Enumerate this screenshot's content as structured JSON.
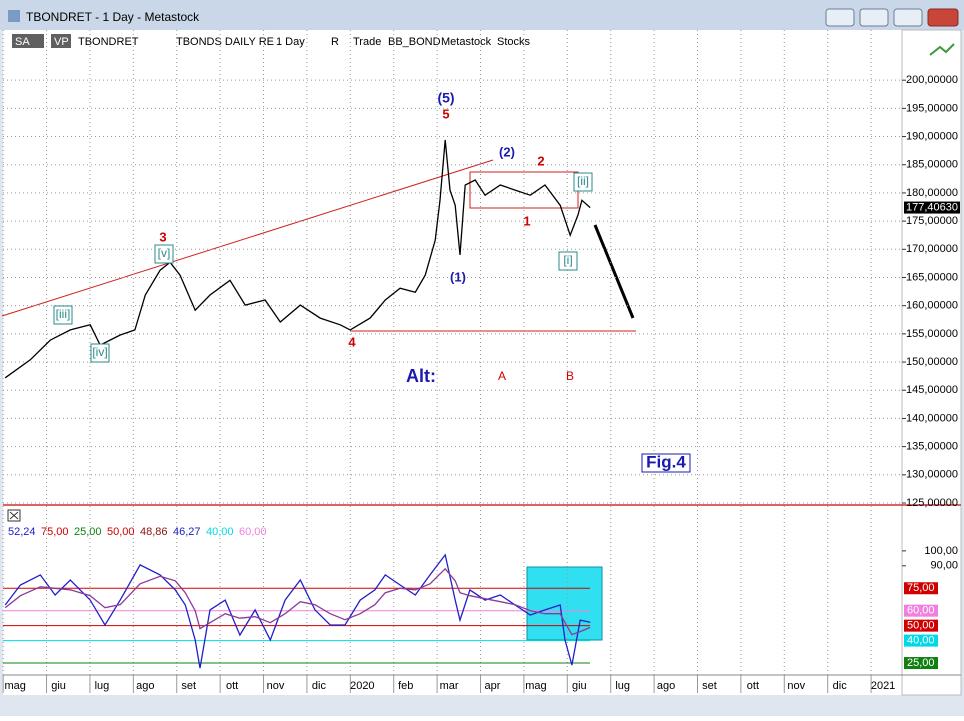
{
  "window": {
    "title": "TBONDRET - 1 Day - Metastock",
    "toolbar": [
      "SA",
      "VP",
      "TBONDRET",
      "TBONDS DAILY RE",
      "1 Day",
      "R",
      "Trade",
      "BB_BOND",
      "Metastock",
      "Stocks"
    ]
  },
  "chart_data": [
    {
      "type": "line",
      "x": [
        -0.23,
        0.35,
        0.81,
        1.27,
        1.73,
        1.96,
        2.42,
        2.76,
        3.0,
        3.34,
        3.57,
        3.8,
        4.15,
        4.49,
        4.95,
        5.3,
        5.76,
        6.11,
        6.57,
        7.03,
        7.49,
        7.72,
        8.18,
        8.53,
        8.87,
        9.22,
        9.45,
        9.68,
        9.79,
        9.91,
        10.02,
        10.14,
        10.25,
        10.37,
        10.6,
        10.83,
        11.18,
        11.52,
        11.87,
        12.21,
        12.56,
        12.79,
        12.97,
        13.06,
        13.25
      ],
      "series": [
        {
          "name": "TBONDRET",
          "color": "#000000",
          "values": [
            147.2,
            150.4,
            153.9,
            155.7,
            156.6,
            153.0,
            154.8,
            155.7,
            161.9,
            166.3,
            167.7,
            165.4,
            159.2,
            161.9,
            164.5,
            160.1,
            161.0,
            157.1,
            160.1,
            157.8,
            156.6,
            155.7,
            157.8,
            161.0,
            163.1,
            162.4,
            165.4,
            171.6,
            178.7,
            189.4,
            180.5,
            177.8,
            169.0,
            181.4,
            182.3,
            179.6,
            181.4,
            180.5,
            179.6,
            181.4,
            177.8,
            172.5,
            176.1,
            178.7,
            177.4063
          ]
        }
      ],
      "last_value_label": "177,40630",
      "xlim": [
        -0.28,
        20.39
      ],
      "xticks": [
        {
          "value": 0,
          "label": "mag"
        },
        {
          "value": 1,
          "label": "giu"
        },
        {
          "value": 2,
          "label": "lug"
        },
        {
          "value": 3,
          "label": "ago"
        },
        {
          "value": 4,
          "label": "set"
        },
        {
          "value": 5,
          "label": "ott"
        },
        {
          "value": 6,
          "label": "nov"
        },
        {
          "value": 7,
          "label": "dic"
        },
        {
          "value": 8,
          "label": "2020"
        },
        {
          "value": 9,
          "label": "feb"
        },
        {
          "value": 10,
          "label": "mar"
        },
        {
          "value": 11,
          "label": "apr"
        },
        {
          "value": 12,
          "label": "mag"
        },
        {
          "value": 13,
          "label": "giu"
        },
        {
          "value": 14,
          "label": "lug"
        },
        {
          "value": 15,
          "label": "ago"
        },
        {
          "value": 16,
          "label": "set"
        },
        {
          "value": 17,
          "label": "ott"
        },
        {
          "value": 18,
          "label": "nov"
        },
        {
          "value": 19,
          "label": "dic"
        },
        {
          "value": 20,
          "label": "2021"
        }
      ],
      "ylim": [
        125,
        208.9
      ],
      "yticks": [
        {
          "value": 125,
          "label": "125,00000"
        },
        {
          "value": 130,
          "label": "130,00000"
        },
        {
          "value": 135,
          "label": "135,00000"
        },
        {
          "value": 140,
          "label": "140,00000"
        },
        {
          "value": 145,
          "label": "145,00000"
        },
        {
          "value": 150,
          "label": "150,00000"
        },
        {
          "value": 155,
          "label": "155,00000"
        },
        {
          "value": 160,
          "label": "160,00000"
        },
        {
          "value": 165,
          "label": "165,00000"
        },
        {
          "value": 170,
          "label": "170,00000"
        },
        {
          "value": 175,
          "label": "175,00000"
        },
        {
          "value": 180,
          "label": "180,00000"
        },
        {
          "value": 185,
          "label": "185,00000"
        },
        {
          "value": 190,
          "label": "190,00000"
        },
        {
          "value": 195,
          "label": "195,00000"
        },
        {
          "value": 200,
          "label": "200,00000"
        }
      ],
      "grid": true,
      "annotations": [
        {
          "text": "(5)",
          "color": "#1a1ab0"
        },
        {
          "text": "5",
          "color": "#d00000"
        },
        {
          "text": "(2)",
          "color": "#1a1ab0"
        },
        {
          "text": "2",
          "color": "#d00000"
        },
        {
          "text": "[ii]",
          "color": "#2a8a8a"
        },
        {
          "text": "1",
          "color": "#d00000"
        },
        {
          "text": "[i]",
          "color": "#2a8a8a"
        },
        {
          "text": "(1)",
          "color": "#1a1ab0"
        },
        {
          "text": "3",
          "color": "#d00000"
        },
        {
          "text": "[v]",
          "color": "#2a8a8a"
        },
        {
          "text": "[iii]",
          "color": "#2a8a8a"
        },
        {
          "text": "[iv]",
          "color": "#2a8a8a"
        },
        {
          "text": "4",
          "color": "#d00000"
        },
        {
          "text": "Alt:",
          "color": "#1a1ab0"
        },
        {
          "text": "A",
          "color": "#d00000"
        },
        {
          "text": "B",
          "color": "#d00000"
        },
        {
          "text": "Fig.4",
          "color": "#1a1ab0"
        }
      ]
    },
    {
      "type": "line",
      "x": [
        -0.23,
        0.12,
        0.58,
        0.92,
        1.27,
        1.73,
        2.07,
        2.42,
        2.88,
        3.34,
        3.69,
        3.92,
        4.15,
        4.26,
        4.49,
        4.84,
        5.18,
        5.53,
        5.88,
        6.22,
        6.57,
        6.91,
        7.26,
        7.6,
        7.95,
        8.29,
        8.53,
        8.87,
        9.22,
        9.56,
        9.91,
        10.14,
        10.25,
        10.48,
        10.83,
        11.18,
        11.52,
        11.87,
        12.21,
        12.56,
        12.67,
        12.83,
        13.02,
        13.25
      ],
      "series": [
        {
          "color": "#2020c8",
          "values": [
            63.8,
            77.2,
            83.9,
            70.5,
            80.5,
            67.1,
            50.4,
            67.1,
            90.6,
            83.9,
            73.9,
            63.8,
            40.4,
            21.6,
            60.5,
            67.1,
            43.7,
            60.5,
            40.4,
            67.1,
            80.5,
            60.5,
            50.4,
            50.4,
            67.1,
            73.9,
            83.9,
            77.2,
            70.5,
            83.9,
            97.3,
            67.1,
            53.7,
            73.9,
            67.1,
            70.5,
            63.8,
            57.1,
            60.5,
            63.8,
            40.4,
            23.6,
            53.7,
            52.24
          ]
        },
        {
          "color": "#8a3a9a",
          "values": [
            62,
            70,
            76,
            75,
            74,
            70,
            62,
            64,
            78,
            83,
            80,
            72,
            60,
            48,
            52,
            58,
            55,
            56,
            52,
            58,
            66,
            64,
            58,
            54,
            58,
            64,
            72,
            75,
            74,
            78,
            88,
            80,
            72,
            70,
            68,
            66,
            64,
            60,
            58,
            58,
            52,
            44,
            46,
            48.86
          ]
        }
      ],
      "legend": [
        {
          "value": 52.24,
          "label": "52,24",
          "color": "#2020c8"
        },
        {
          "value": 75,
          "label": "75,00",
          "color": "#d00000"
        },
        {
          "value": 25,
          "label": "25,00",
          "color": "#108010"
        },
        {
          "value": 50,
          "label": "50,00",
          "color": "#d00000"
        },
        {
          "value": 48.86,
          "label": "48,86",
          "color": "#8a1010"
        },
        {
          "value": 46.27,
          "label": "46,27",
          "color": "#2020c8"
        },
        {
          "value": 40,
          "label": "40,00",
          "color": "#00d8e8"
        },
        {
          "value": 60,
          "label": "60,00",
          "color": "#f080e0"
        }
      ],
      "levels": [
        {
          "value": 75,
          "label": "75,00",
          "color": "#d00000"
        },
        {
          "value": 60,
          "label": "60,00",
          "color": "#f080e0"
        },
        {
          "value": 50,
          "label": "50,00",
          "color": "#d00000"
        },
        {
          "value": 40,
          "label": "40,00",
          "color": "#00d8e8"
        },
        {
          "value": 25,
          "label": "25,00",
          "color": "#108010"
        }
      ],
      "xlim": [
        -0.28,
        20.39
      ],
      "ylim": [
        17,
        130
      ],
      "yticks": [
        {
          "value": 100,
          "label": "100,00"
        },
        {
          "value": 90,
          "label": "90,00"
        }
      ]
    }
  ]
}
